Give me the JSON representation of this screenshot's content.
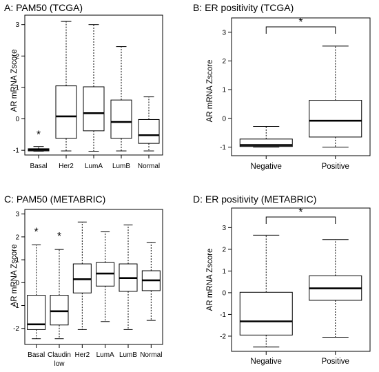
{
  "chart_data": [
    {
      "type": "boxplot",
      "title": "A: PAM50 (TCGA)",
      "ylabel": "AR mRNA Zscore",
      "ylim": [
        -1.15,
        3.3
      ],
      "yticks": [
        -1,
        0,
        1,
        2,
        3
      ],
      "categories": [
        "Basal",
        "Her2",
        "LumA",
        "LumB",
        "Normal"
      ],
      "boxes": [
        {
          "whislo": -1.03,
          "q1": -1.02,
          "med": -0.98,
          "q3": -0.95,
          "whishi": -0.88
        },
        {
          "whislo": -1.02,
          "q1": -0.62,
          "med": 0.08,
          "q3": 1.05,
          "whishi": 3.1
        },
        {
          "whislo": -1.03,
          "q1": -0.38,
          "med": 0.18,
          "q3": 1.02,
          "whishi": 3.0
        },
        {
          "whislo": -1.02,
          "q1": -0.62,
          "med": -0.1,
          "q3": 0.6,
          "whishi": 2.3
        },
        {
          "whislo": -1.02,
          "q1": -0.78,
          "med": -0.52,
          "q3": -0.02,
          "whishi": 0.7
        }
      ],
      "annotations": [
        {
          "category": "Basal",
          "text": "*"
        }
      ]
    },
    {
      "type": "boxplot",
      "title": "B: ER positivity (TCGA)",
      "ylabel": "AR mRNA Zscore",
      "ylim": [
        -1.3,
        3.5
      ],
      "yticks": [
        -1,
        0,
        1,
        2,
        3
      ],
      "categories": [
        "Negative",
        "Positive"
      ],
      "boxes": [
        {
          "whislo": -1.0,
          "q1": -0.98,
          "med": -0.93,
          "q3": -0.72,
          "whishi": -0.28
        },
        {
          "whislo": -1.0,
          "q1": -0.65,
          "med": -0.08,
          "q3": 0.63,
          "whishi": 2.52
        }
      ],
      "annotations": [
        {
          "bracket": [
            "Negative",
            "Positive"
          ],
          "text": "*"
        }
      ]
    },
    {
      "type": "boxplot",
      "title": "C: PAM50 (METABRIC)",
      "ylabel": "AR mRNA Zscore",
      "ylim": [
        -2.7,
        3.2
      ],
      "yticks": [
        -2,
        -1,
        0,
        1,
        2,
        3
      ],
      "categories": [
        [
          "Basal"
        ],
        [
          "Claudin",
          "low"
        ],
        [
          "Her2"
        ],
        [
          "LumA"
        ],
        [
          "LumB"
        ],
        [
          "Normal"
        ]
      ],
      "boxes": [
        {
          "whislo": -2.45,
          "q1": -2.05,
          "med": -1.82,
          "q3": -0.55,
          "whishi": 1.65
        },
        {
          "whislo": -2.45,
          "q1": -1.85,
          "med": -1.25,
          "q3": -0.55,
          "whishi": 1.45
        },
        {
          "whislo": -2.05,
          "q1": -0.45,
          "med": 0.15,
          "q3": 0.82,
          "whishi": 2.65
        },
        {
          "whislo": -1.7,
          "q1": -0.15,
          "med": 0.4,
          "q3": 0.88,
          "whishi": 2.22
        },
        {
          "whislo": -2.05,
          "q1": -0.38,
          "med": 0.2,
          "q3": 0.82,
          "whishi": 2.52
        },
        {
          "whislo": -1.65,
          "q1": -0.35,
          "med": 0.1,
          "q3": 0.52,
          "whishi": 1.75
        }
      ],
      "annotations": [
        {
          "category": "Basal",
          "text": "*"
        },
        {
          "category": "Claudin low",
          "text": "*"
        }
      ]
    },
    {
      "type": "boxplot",
      "title": "D: ER positivity (METABRIC)",
      "ylabel": "AR mRNA Zscore",
      "ylim": [
        -2.7,
        3.9
      ],
      "yticks": [
        -2,
        -1,
        0,
        1,
        2,
        3
      ],
      "categories": [
        "Negative",
        "Positive"
      ],
      "boxes": [
        {
          "whislo": -2.5,
          "q1": -1.95,
          "med": -1.32,
          "q3": 0.02,
          "whishi": 2.65
        },
        {
          "whislo": -2.05,
          "q1": -0.35,
          "med": 0.2,
          "q3": 0.78,
          "whishi": 2.45
        }
      ],
      "annotations": [
        {
          "bracket": [
            "Negative",
            "Positive"
          ],
          "text": "*"
        }
      ]
    }
  ]
}
